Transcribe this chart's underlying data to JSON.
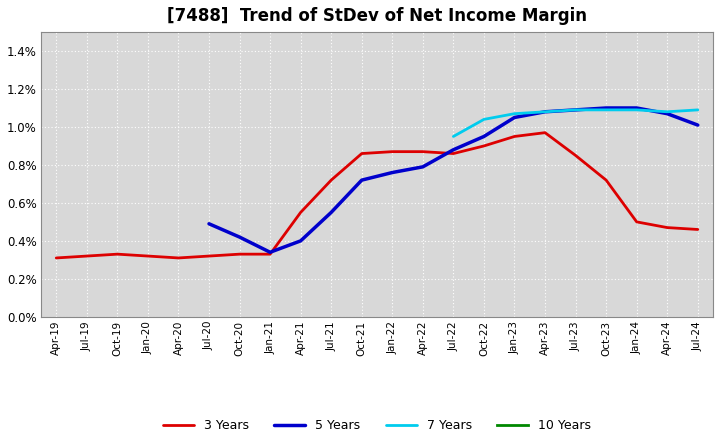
{
  "title": "[7488]  Trend of StDev of Net Income Margin",
  "title_fontsize": 12,
  "background_color": "#ffffff",
  "plot_bg_color": "#d8d8d8",
  "grid_color": "#ffffff",
  "ylim": [
    0.0,
    0.015
  ],
  "yticks": [
    0.0,
    0.002,
    0.004,
    0.006,
    0.008,
    0.01,
    0.012,
    0.014
  ],
  "ytick_labels": [
    "0.0%",
    "0.2%",
    "0.4%",
    "0.6%",
    "0.8%",
    "1.0%",
    "1.2%",
    "1.4%"
  ],
  "series": {
    "3 Years": {
      "color": "#dd0000",
      "linewidth": 2.0,
      "dates": [
        "Apr-19",
        "Jul-19",
        "Oct-19",
        "Jan-20",
        "Apr-20",
        "Jul-20",
        "Oct-20",
        "Jan-21",
        "Apr-21",
        "Jul-21",
        "Oct-21",
        "Jan-22",
        "Apr-22",
        "Jul-22",
        "Oct-22",
        "Jan-23",
        "Apr-23",
        "Jul-23",
        "Oct-23",
        "Jan-24",
        "Apr-24",
        "Jul-24"
      ],
      "values": [
        0.0031,
        0.0032,
        0.0033,
        0.0032,
        0.0031,
        0.0032,
        0.0033,
        0.0033,
        0.0055,
        0.0072,
        0.0086,
        0.0087,
        0.0087,
        0.0086,
        0.009,
        0.0095,
        0.0097,
        0.0085,
        0.0072,
        0.005,
        0.0047,
        0.0046
      ]
    },
    "5 Years": {
      "color": "#0000cc",
      "linewidth": 2.5,
      "dates": [
        "Apr-19",
        "Jul-19",
        "Oct-19",
        "Jan-20",
        "Apr-20",
        "Jul-20",
        "Oct-20",
        "Jan-21",
        "Apr-21",
        "Jul-21",
        "Oct-21",
        "Jan-22",
        "Apr-22",
        "Jul-22",
        "Oct-22",
        "Jan-23",
        "Apr-23",
        "Jul-23",
        "Oct-23",
        "Jan-24",
        "Apr-24",
        "Jul-24"
      ],
      "values": [
        null,
        null,
        null,
        null,
        null,
        0.0049,
        0.0042,
        0.0034,
        0.004,
        0.0055,
        0.0072,
        0.0076,
        0.0079,
        0.0088,
        0.0095,
        0.0105,
        0.0108,
        0.0109,
        0.011,
        0.011,
        0.0107,
        0.0101
      ]
    },
    "7 Years": {
      "color": "#00ccee",
      "linewidth": 2.0,
      "dates": [
        "Apr-19",
        "Jul-19",
        "Oct-19",
        "Jan-20",
        "Apr-20",
        "Jul-20",
        "Oct-20",
        "Jan-21",
        "Apr-21",
        "Jul-21",
        "Oct-21",
        "Jan-22",
        "Apr-22",
        "Jul-22",
        "Oct-22",
        "Jan-23",
        "Apr-23",
        "Jul-23",
        "Oct-23",
        "Jan-24",
        "Apr-24",
        "Jul-24"
      ],
      "values": [
        null,
        null,
        null,
        null,
        null,
        null,
        null,
        null,
        null,
        null,
        null,
        null,
        null,
        0.0095,
        0.0104,
        0.0107,
        0.0108,
        0.0109,
        0.0109,
        0.0109,
        0.0108,
        0.0109
      ]
    },
    "10 Years": {
      "color": "#008800",
      "linewidth": 2.0,
      "dates": [],
      "values": []
    }
  },
  "xtick_labels": [
    "Apr-19",
    "Jul-19",
    "Oct-19",
    "Jan-20",
    "Apr-20",
    "Jul-20",
    "Oct-20",
    "Jan-21",
    "Apr-21",
    "Jul-21",
    "Oct-21",
    "Jan-22",
    "Apr-22",
    "Jul-22",
    "Oct-22",
    "Jan-23",
    "Apr-23",
    "Jul-23",
    "Oct-23",
    "Jan-24",
    "Apr-24",
    "Jul-24"
  ],
  "legend_fontsize": 9,
  "legend_handlelength": 2.5
}
